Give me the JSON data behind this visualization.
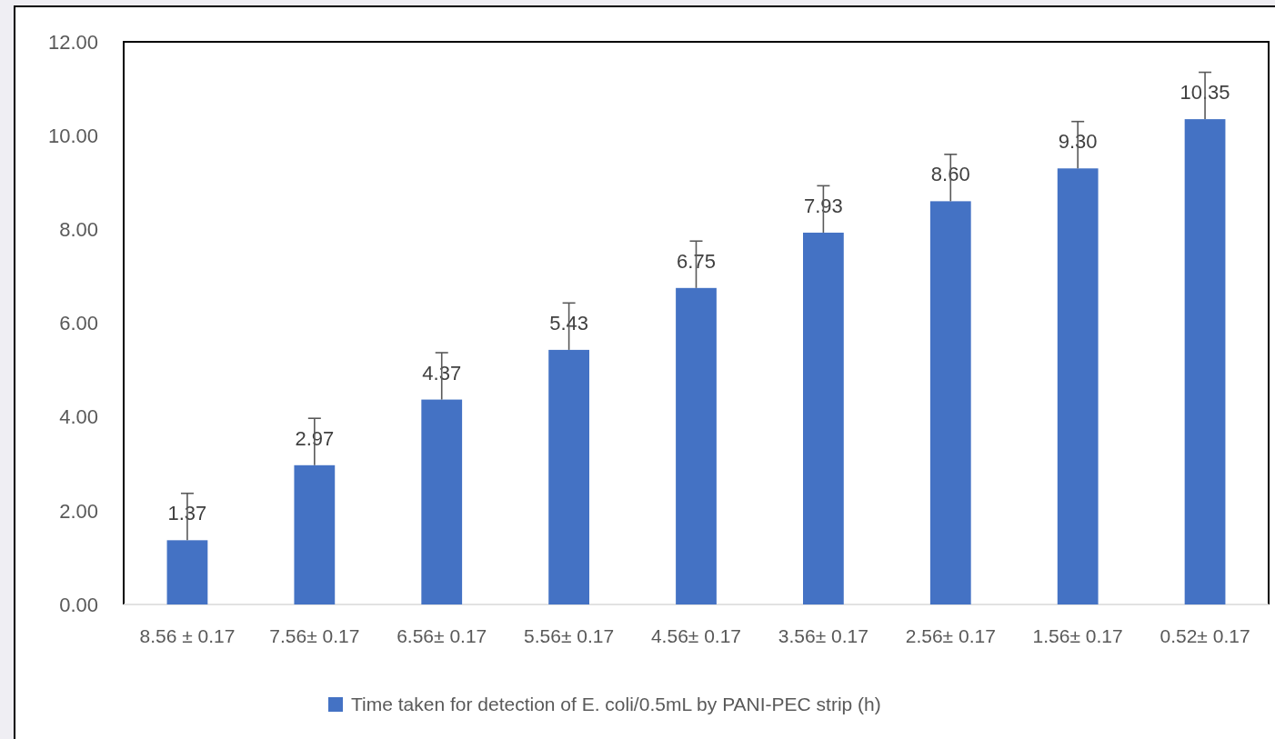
{
  "chart_data": {
    "type": "bar",
    "categories": [
      "8.56 ± 0.17",
      "7.56± 0.17",
      "6.56± 0.17",
      "5.56± 0.17",
      "4.56± 0.17",
      "3.56± 0.17",
      "2.56± 0.17",
      "1.56± 0.17",
      "0.52± 0.17"
    ],
    "series": [
      {
        "name": "Time taken for detection of E. coli/0.5mL by PANI-PEC strip (h)",
        "color": "#4472c4",
        "values": [
          1.37,
          2.97,
          4.37,
          5.43,
          6.75,
          7.93,
          8.6,
          9.3,
          10.35
        ],
        "value_labels": [
          "1.37",
          "2.97",
          "4.37",
          "5.43",
          "6.75",
          "7.93",
          "8.60",
          "9.30",
          "10.35"
        ],
        "errors": [
          [
            1.37,
            2.37
          ],
          [
            2.97,
            3.97
          ],
          [
            4.37,
            5.37
          ],
          [
            5.43,
            6.43
          ],
          [
            6.75,
            7.75
          ],
          [
            7.93,
            8.93
          ],
          [
            8.6,
            9.6
          ],
          [
            9.3,
            10.3
          ],
          [
            10.35,
            11.35
          ]
        ]
      }
    ],
    "ylim": [
      0,
      12
    ],
    "yticks": [
      {
        "value": 0,
        "label": "0.00"
      },
      {
        "value": 2,
        "label": "2.00"
      },
      {
        "value": 4,
        "label": "4.00"
      },
      {
        "value": 6,
        "label": "6.00"
      },
      {
        "value": 8,
        "label": "8.00"
      },
      {
        "value": 10,
        "label": "10.00"
      },
      {
        "value": 12,
        "label": "12.00"
      }
    ],
    "legend": "bottom"
  }
}
